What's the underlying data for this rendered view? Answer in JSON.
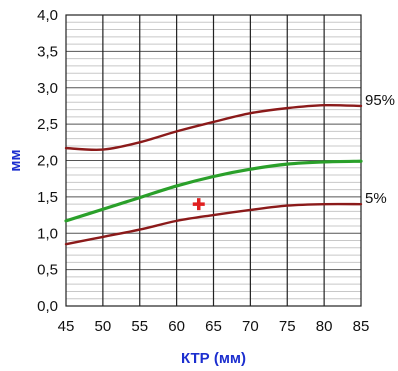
{
  "colors": {
    "p95_line": "#8b1a1a",
    "median_line": "#2aa02a",
    "p5_line": "#8b1a1a",
    "marker": "#e02020",
    "axis_title": "#1c2fcf",
    "grid_major": "#555555",
    "grid_minor": "#c8c8c8",
    "background": "#ffffff"
  },
  "chart_data": {
    "type": "line",
    "title": "",
    "xlabel": "КТР (мм)",
    "ylabel": "мм",
    "xlim": [
      45,
      85
    ],
    "ylim": [
      0,
      4
    ],
    "x_ticks": [
      "45",
      "50",
      "55",
      "60",
      "65",
      "70",
      "75",
      "80",
      "85"
    ],
    "y_ticks": [
      "0,0",
      "0,5",
      "1,0",
      "1,5",
      "2,0",
      "2,5",
      "3,0",
      "3,5",
      "4,0"
    ],
    "grid": true,
    "x": [
      45,
      50,
      55,
      60,
      65,
      70,
      75,
      80,
      85
    ],
    "series": [
      {
        "name": "95%",
        "color": "#8b1a1a",
        "values": [
          2.17,
          2.15,
          2.25,
          2.4,
          2.53,
          2.65,
          2.72,
          2.76,
          2.75
        ]
      },
      {
        "name": "",
        "color": "#2aa02a",
        "values": [
          1.17,
          1.33,
          1.49,
          1.65,
          1.78,
          1.88,
          1.95,
          1.98,
          1.99
        ]
      },
      {
        "name": "5%",
        "color": "#8b1a1a",
        "values": [
          0.85,
          0.95,
          1.05,
          1.17,
          1.25,
          1.32,
          1.38,
          1.4,
          1.4
        ]
      }
    ],
    "marker": {
      "x": 63,
      "y": 1.4,
      "symbol": "+"
    }
  }
}
